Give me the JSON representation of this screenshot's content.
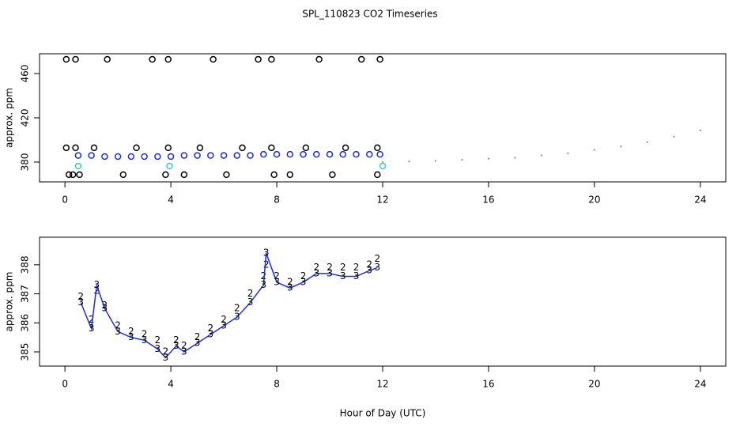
{
  "chart_data": [
    {
      "type": "scatter",
      "title": "SPL_110823  CO2 Timeseries",
      "ylabel": "approx. ppm",
      "xlim": [
        -0.96,
        24.96
      ],
      "xticks": [
        0,
        4,
        8,
        12,
        16,
        20,
        24
      ],
      "ylim": [
        362.1,
        477.9
      ],
      "yticks": [
        380,
        420,
        460
      ],
      "series": [
        {
          "marker": "dot",
          "color": "#999999",
          "x": [
            12,
            13,
            14,
            15,
            16,
            17,
            18,
            19,
            20,
            21,
            22,
            23,
            24
          ],
          "values": [
            380,
            380.5,
            381,
            382,
            383,
            384,
            386,
            388,
            391,
            394,
            398,
            403,
            408.6
          ]
        },
        {
          "marker": "circle",
          "color": "#1f2fd0",
          "x": [
            0.5,
            1,
            1.5,
            2,
            2.5,
            3,
            3.5,
            4,
            4.5,
            5,
            5.5,
            6,
            6.5,
            7,
            7.5,
            8,
            8.5,
            9,
            9.5,
            10,
            10.5,
            11,
            11.5,
            11.9
          ],
          "values": [
            386,
            386,
            385,
            385,
            385,
            385,
            385,
            385,
            386,
            386,
            386,
            386,
            386,
            386,
            387,
            387,
            387,
            387,
            387,
            387,
            387,
            387,
            387,
            387
          ]
        },
        {
          "marker": "circle",
          "color": "#000000",
          "x": [
            0.05,
            0.4,
            1.6,
            3.3,
            3.9,
            5.6,
            7.3,
            7.8,
            9.6,
            11.2,
            11.9,
            0.05,
            0.4,
            1.1,
            2.7,
            3.9,
            5.1,
            6.7,
            7.8,
            9.1,
            10.6,
            11.8,
            0.15,
            0.3,
            0.55,
            2.2,
            3.8,
            4.5,
            6.1,
            7.9,
            8.5,
            10.1,
            11.8
          ],
          "values": [
            472.9,
            472.9,
            472.9,
            472.9,
            472.9,
            472.9,
            472.9,
            472.9,
            472.9,
            472.9,
            472.9,
            392.9,
            392.9,
            392.9,
            392.9,
            392.9,
            392.9,
            392.9,
            392.9,
            392.9,
            392.9,
            392.9,
            368.6,
            368.6,
            368.6,
            368.6,
            368.6,
            368.6,
            368.6,
            368.6,
            368.6,
            368.6,
            368.6
          ]
        },
        {
          "marker": "circle",
          "color": "#33cccc",
          "x": [
            0.5,
            3.95,
            12
          ],
          "values": [
            376.4,
            376.4,
            376.4
          ]
        }
      ]
    },
    {
      "type": "scatter",
      "ylabel": "approx. ppm",
      "xlabel": "Hour of Day (UTC)",
      "xlim": [
        -0.96,
        24.96
      ],
      "xticks": [
        0,
        4,
        8,
        12,
        16,
        20,
        24
      ],
      "ylim": [
        384.51,
        388.95
      ],
      "yticks": [
        385,
        386,
        387,
        388
      ],
      "series": [
        {
          "marker": "2",
          "color": "#22cc22",
          "line": false,
          "x": [
            0.6,
            1.0,
            1.2,
            1.5,
            2.0,
            2.5,
            3.0,
            3.5,
            3.8,
            4.2,
            4.5,
            5.0,
            5.5,
            6.0,
            6.5,
            7.0,
            7.5,
            7.6,
            8.0,
            8.5,
            9.0,
            9.5,
            10.0,
            10.5,
            11.0,
            11.5,
            11.8
          ],
          "values": [
            386.9,
            386.1,
            387.1,
            386.6,
            385.9,
            385.7,
            385.6,
            385.4,
            385.0,
            385.4,
            385.2,
            385.5,
            385.8,
            386.1,
            386.5,
            387.0,
            387.6,
            388.0,
            387.6,
            387.4,
            387.6,
            387.9,
            387.9,
            387.9,
            387.9,
            388.0,
            388.2
          ]
        },
        {
          "marker": "3",
          "color": "#1f2fd0",
          "line": true,
          "x": [
            0.6,
            1.0,
            1.2,
            1.5,
            2.0,
            2.5,
            3.0,
            3.5,
            3.8,
            4.2,
            4.5,
            5.0,
            5.5,
            6.0,
            6.5,
            7.0,
            7.5,
            7.6,
            8.0,
            8.5,
            9.0,
            9.5,
            10.0,
            10.5,
            11.0,
            11.5,
            11.8
          ],
          "values": [
            386.7,
            385.8,
            387.3,
            386.5,
            385.7,
            385.5,
            385.4,
            385.1,
            384.8,
            385.2,
            385.0,
            385.3,
            385.6,
            385.9,
            386.2,
            386.7,
            387.3,
            388.4,
            387.4,
            387.2,
            387.4,
            387.7,
            387.7,
            387.6,
            387.6,
            387.8,
            387.9
          ]
        }
      ]
    }
  ]
}
